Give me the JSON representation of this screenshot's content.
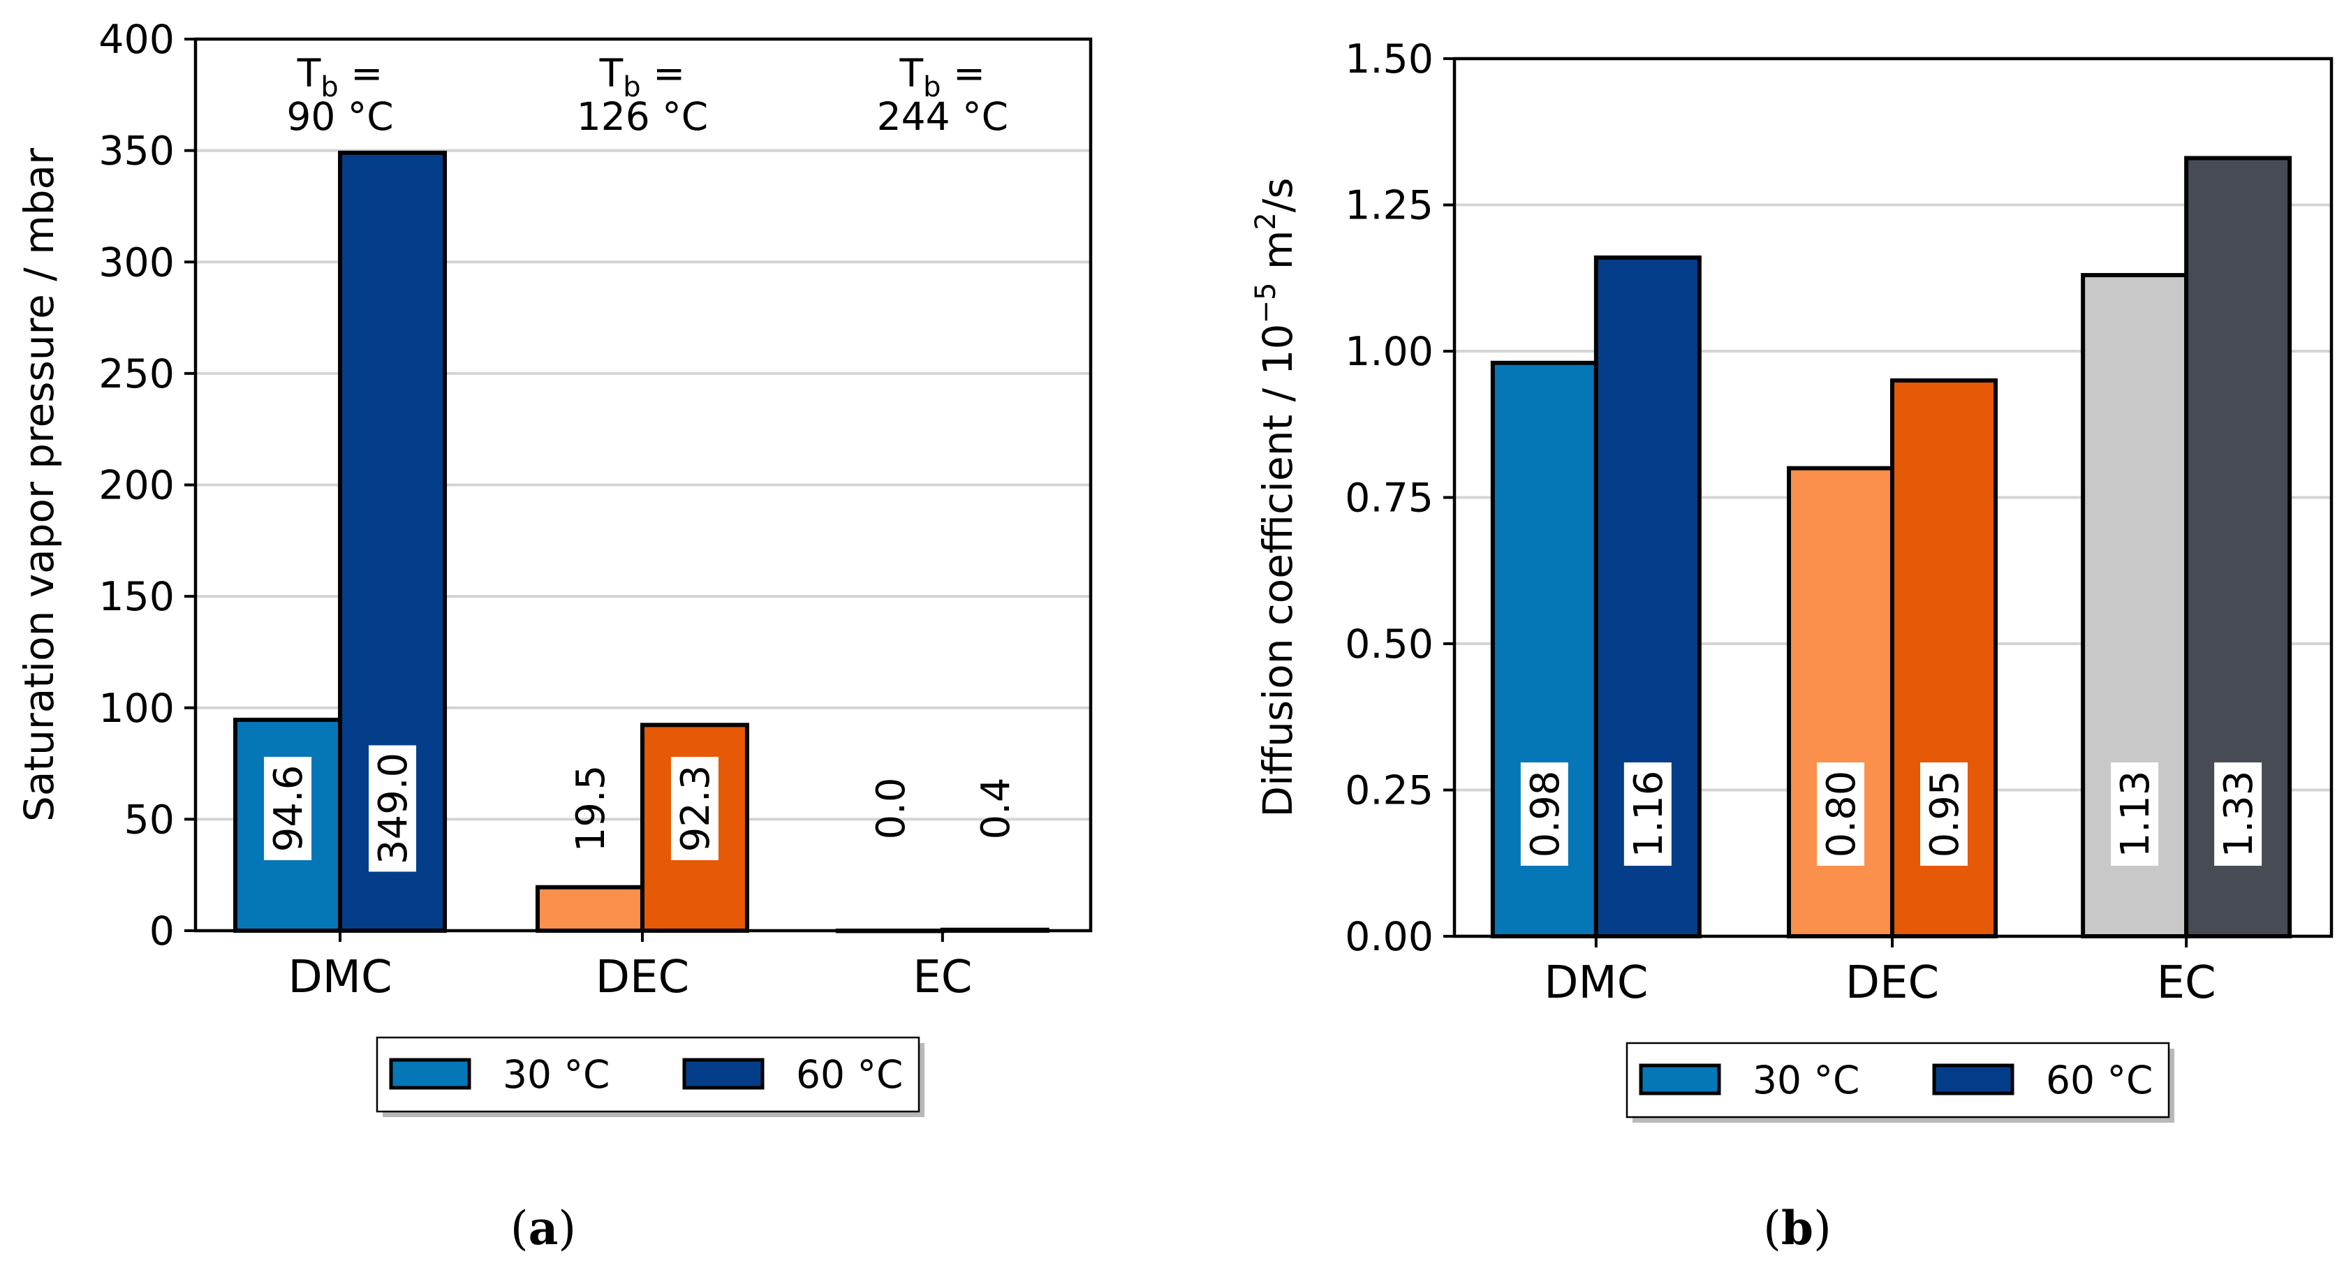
{
  "chart_data": [
    {
      "panel": "(a)",
      "type": "bar",
      "ylabel": "Saturation vapor pressure  / mbar",
      "ylim": [
        0,
        400
      ],
      "yticks": [
        "0",
        "50",
        "100",
        "150",
        "200",
        "250",
        "300",
        "350",
        "400"
      ],
      "ytick_values": [
        0,
        50,
        100,
        150,
        200,
        250,
        300,
        350,
        400
      ],
      "categories": [
        "DMC",
        "DEC",
        "EC"
      ],
      "annotations": [
        {
          "category": "DMC",
          "line1": "T",
          "sub": "b",
          "eq": " =",
          "line2": "90 °C"
        },
        {
          "category": "DEC",
          "line1": "T",
          "sub": "b",
          "eq": " =",
          "line2": "126 °C"
        },
        {
          "category": "EC",
          "line1": "T",
          "sub": "b",
          "eq": " =",
          "line2": "244 °C"
        }
      ],
      "series": [
        {
          "name": "30 °C",
          "values": [
            94.6,
            19.5,
            0.0
          ],
          "labels": [
            "94.6",
            "19.5",
            "0.0"
          ],
          "colors": [
            "#0577b7",
            "#fb8f4c",
            "#c8c8c8"
          ],
          "boxed": [
            true,
            false,
            false
          ]
        },
        {
          "name": "60 °C",
          "values": [
            349.0,
            92.3,
            0.4
          ],
          "labels": [
            "349.0",
            "92.3",
            "0.4"
          ],
          "colors": [
            "#043e8a",
            "#e65906",
            "#474c54"
          ],
          "boxed": [
            true,
            true,
            false
          ]
        }
      ],
      "legend": {
        "placement": "bottom",
        "items": [
          {
            "label": "30 °C",
            "color": "#0577b7"
          },
          {
            "label": "60 °C",
            "color": "#043e8a"
          }
        ]
      },
      "grid": true
    },
    {
      "panel": "(b)",
      "type": "bar",
      "ylabel": "Diffusion coefficient / 10",
      "ylabel_sup": "−5",
      "ylabel_unit": " m",
      "ylabel_unit_sup": "2",
      "ylabel_unit_tail": "/s",
      "ylim": [
        0,
        1.5
      ],
      "yticks": [
        "0.00",
        "0.25",
        "0.50",
        "0.75",
        "1.00",
        "1.25",
        "1.50"
      ],
      "ytick_values": [
        0,
        0.25,
        0.5,
        0.75,
        1.0,
        1.25,
        1.5
      ],
      "categories": [
        "DMC",
        "DEC",
        "EC"
      ],
      "series": [
        {
          "name": "30 °C",
          "values": [
            0.98,
            0.8,
            1.13
          ],
          "labels": [
            "0.98",
            "0.80",
            "1.13"
          ],
          "colors": [
            "#0577b7",
            "#fb8f4c",
            "#c8c8c8"
          ],
          "boxed": [
            true,
            true,
            true
          ]
        },
        {
          "name": "60 °C",
          "values": [
            1.16,
            0.95,
            1.33
          ],
          "labels": [
            "1.16",
            "0.95",
            "1.33"
          ],
          "colors": [
            "#043e8a",
            "#e65906",
            "#474c54"
          ],
          "boxed": [
            true,
            true,
            true
          ]
        }
      ],
      "legend": {
        "placement": "bottom",
        "items": [
          {
            "label": "30 °C",
            "color": "#0577b7"
          },
          {
            "label": "60 °C",
            "color": "#043e8a"
          }
        ]
      },
      "grid": true
    }
  ],
  "captions": {
    "a": {
      "open": "(",
      "letter": "a",
      "close": ")"
    },
    "b": {
      "open": "(",
      "letter": "b",
      "close": ")"
    }
  }
}
